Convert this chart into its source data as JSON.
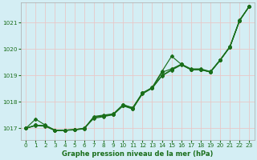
{
  "xlabel": "Graphe pression niveau de la mer (hPa)",
  "ylim": [
    1016.55,
    1021.75
  ],
  "xlim": [
    -0.5,
    23.5
  ],
  "yticks": [
    1017,
    1018,
    1019,
    1020,
    1021
  ],
  "xticks": [
    0,
    1,
    2,
    3,
    4,
    5,
    6,
    7,
    8,
    9,
    10,
    11,
    12,
    13,
    14,
    15,
    16,
    17,
    18,
    19,
    20,
    21,
    22,
    23
  ],
  "background_color": "#d4eef4",
  "grid_color": "#e8c8c8",
  "line_color": "#1a6e1a",
  "figsize": [
    3.2,
    2.0
  ],
  "dpi": 100,
  "lines": [
    [
      1017.0,
      1017.35,
      1017.12,
      1016.93,
      1016.93,
      1016.95,
      1017.0,
      1017.38,
      1017.44,
      1017.52,
      1017.85,
      1017.73,
      1018.33,
      1018.55,
      1019.15,
      1019.73,
      1019.42,
      1019.22,
      1019.22,
      1019.13,
      1019.58,
      1020.08,
      1021.08,
      1021.62
    ],
    [
      1017.0,
      1017.12,
      1017.1,
      1016.92,
      1016.92,
      1016.94,
      1016.98,
      1017.42,
      1017.47,
      1017.52,
      1017.87,
      1017.75,
      1018.3,
      1018.52,
      1019.12,
      1019.25,
      1019.42,
      1019.22,
      1019.22,
      1019.13,
      1019.58,
      1020.08,
      1021.08,
      1021.62
    ],
    [
      1017.0,
      1017.1,
      1017.08,
      1016.91,
      1016.93,
      1016.95,
      1016.99,
      1017.45,
      1017.5,
      1017.55,
      1017.9,
      1017.78,
      1018.35,
      1018.52,
      1019.0,
      1019.22,
      1019.43,
      1019.25,
      1019.25,
      1019.15,
      1019.6,
      1020.1,
      1021.1,
      1021.62
    ],
    [
      1017.0,
      1017.12,
      1017.1,
      1016.93,
      1016.93,
      1016.95,
      1017.0,
      1017.42,
      1017.48,
      1017.52,
      1017.88,
      1017.78,
      1018.33,
      1018.52,
      1018.98,
      1019.2,
      1019.4,
      1019.22,
      1019.22,
      1019.13,
      1019.58,
      1020.08,
      1021.08,
      1021.62
    ]
  ]
}
